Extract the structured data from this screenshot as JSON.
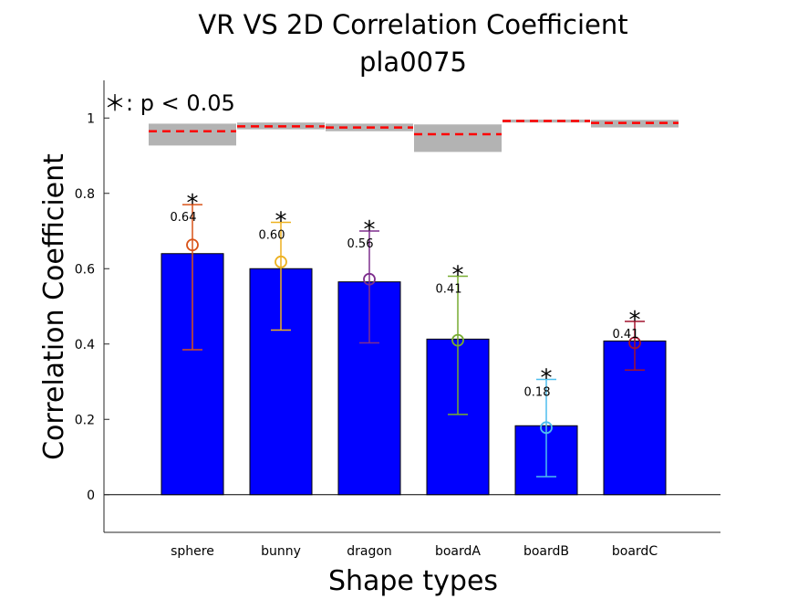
{
  "chart_data": {
    "type": "bar",
    "title": "VR VS 2D Correlation Coefficient",
    "subtitle": "pla0075",
    "xlabel": "Shape types",
    "ylabel": "Correlation Coefficient",
    "ylim": [
      -0.1,
      1.1
    ],
    "yticks": [
      0,
      0.2,
      0.4,
      0.6,
      0.8,
      1
    ],
    "ytick_labels": [
      "0",
      "0.2",
      "0.4",
      "0.6",
      "0.8",
      "1"
    ],
    "categories": [
      "sphere",
      "bunny",
      "dragon",
      "boardA",
      "boardB",
      "boardC"
    ],
    "values": [
      0.64,
      0.6,
      0.565,
      0.413,
      0.183,
      0.408
    ],
    "value_labels": [
      "0.64",
      "0.60",
      "0.56",
      "0.41",
      "0.18",
      "0.41"
    ],
    "means": [
      0.663,
      0.618,
      0.572,
      0.41,
      0.178,
      0.403
    ],
    "error_low": [
      0.385,
      0.437,
      0.403,
      0.213,
      0.048,
      0.331
    ],
    "error_high": [
      0.77,
      0.723,
      0.7,
      0.58,
      0.306,
      0.46
    ],
    "error_colors": [
      "#D95319",
      "#EDB120",
      "#7E2F8E",
      "#77AC30",
      "#4DBEEE",
      "#A2142F"
    ],
    "significance": [
      "*",
      "*",
      "*",
      "*",
      "*",
      "*"
    ],
    "ceiling_mean": [
      0.965,
      0.978,
      0.975,
      0.957,
      0.992,
      0.987
    ],
    "ceiling_low": [
      0.927,
      0.97,
      0.965,
      0.91,
      0.988,
      0.975
    ],
    "ceiling_high": [
      0.985,
      0.988,
      0.985,
      0.983,
      0.996,
      0.995
    ],
    "annotation": "＊: p < 0.05",
    "colors": {
      "bar": "#0000FF",
      "ceiling_band": "#B3B3B3",
      "ceiling_line": "#FF0000"
    },
    "grid": false,
    "legend": "none"
  }
}
